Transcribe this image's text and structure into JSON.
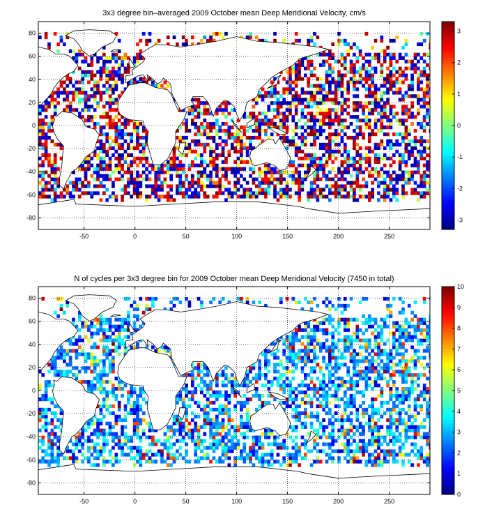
{
  "chart_data": [
    {
      "type": "heatmap",
      "title": "3x3 degree bin–averaged 2009 October mean Deep Meridional Velocity, cm/s",
      "xlim": [
        -95,
        290
      ],
      "ylim": [
        -90,
        90
      ],
      "x_ticks": [
        -50,
        0,
        50,
        100,
        150,
        200,
        250
      ],
      "y_ticks": [
        -80,
        -60,
        -40,
        -20,
        0,
        20,
        40,
        60,
        80
      ],
      "colorbar": {
        "min": -3.3,
        "max": 3.3,
        "ticks": [
          -3,
          -2,
          -1,
          0,
          1,
          2,
          3
        ],
        "colormap": "jet"
      },
      "grid": true,
      "bin_size_deg": 3,
      "seed": 7
    },
    {
      "type": "heatmap",
      "title": "N of cycles per 3x3 degree bin for 2009 October mean Deep Meridional Velocity (7450 in total)",
      "xlim": [
        -95,
        290
      ],
      "ylim": [
        -90,
        90
      ],
      "x_ticks": [
        -50,
        0,
        50,
        100,
        150,
        200,
        250
      ],
      "y_ticks": [
        -80,
        -60,
        -40,
        -20,
        0,
        20,
        40,
        60,
        80
      ],
      "colorbar": {
        "min": 0,
        "max": 10,
        "ticks": [
          0,
          1,
          2,
          3,
          4,
          5,
          6,
          7,
          8,
          9,
          10
        ],
        "colormap": "jet"
      },
      "grid": true,
      "bin_size_deg": 3,
      "seed": 13
    }
  ]
}
